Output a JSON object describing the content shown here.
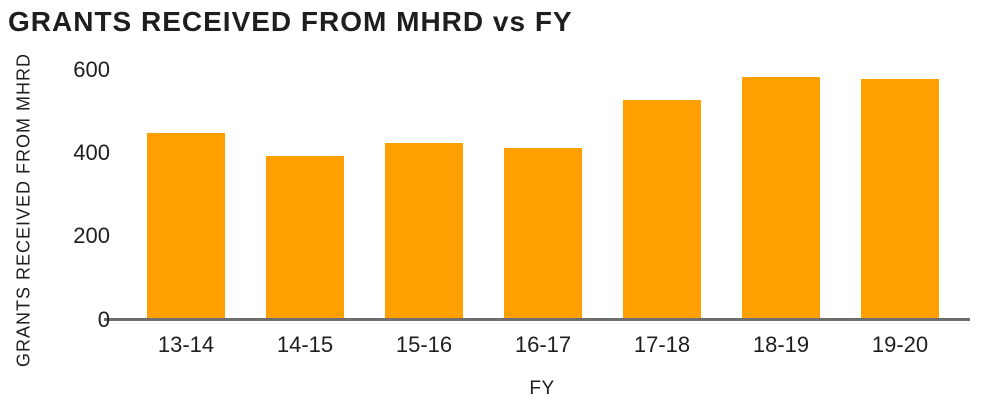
{
  "title": "GRANTS RECEIVED FROM MHRD vs FY",
  "chart_data": {
    "type": "bar",
    "title": "GRANTS RECEIVED FROM MHRD vs FY",
    "categories": [
      "13-14",
      "14-15",
      "15-16",
      "16-17",
      "17-18",
      "18-19",
      "19-20"
    ],
    "values": [
      445,
      390,
      420,
      408,
      525,
      580,
      575
    ],
    "xlabel": "FY",
    "ylabel": "GRANTS RECEIVED FROM MHRD",
    "ylim": [
      0,
      600
    ],
    "yticks": [
      0,
      200,
      400,
      600
    ],
    "grid": false,
    "legend": "none",
    "bar_color": "#FFA000",
    "axis_line_color": "#6E6E6E",
    "text_color": "#1E1E1E",
    "background_color": "#FFFFFF"
  }
}
